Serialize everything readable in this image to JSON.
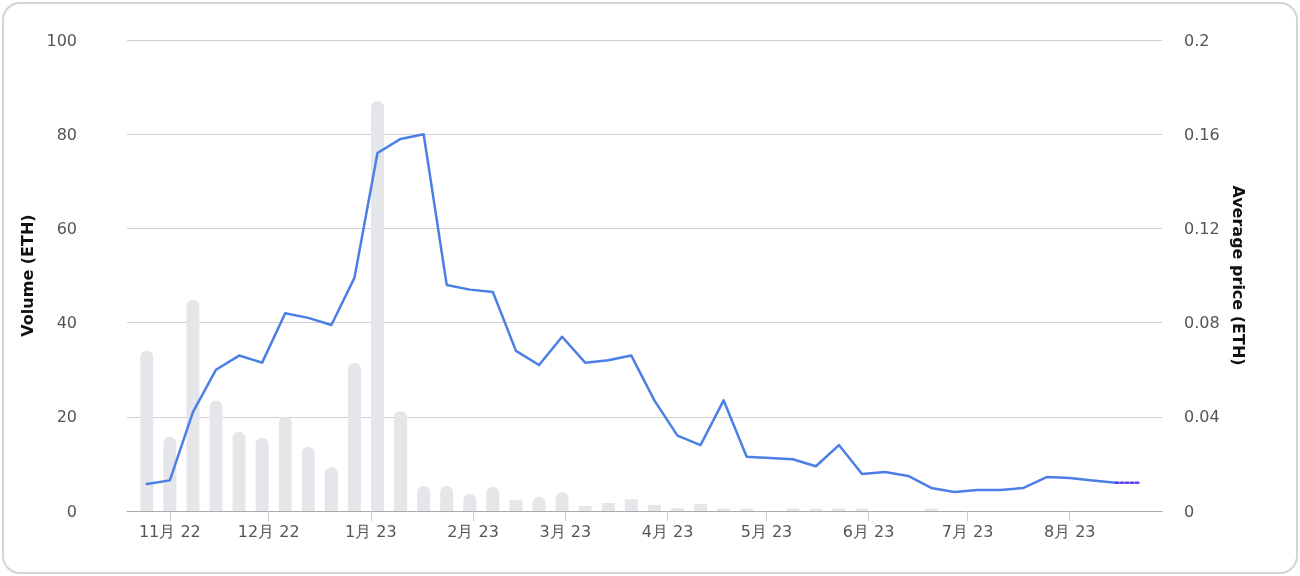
{
  "chart_data": {
    "type": "bar",
    "x": [
      "2022-10-25",
      "2022-11-01",
      "2022-11-08",
      "2022-11-15",
      "2022-11-22",
      "2022-11-29",
      "2022-12-06",
      "2022-12-13",
      "2022-12-20",
      "2022-12-27",
      "2023-01-03",
      "2023-01-10",
      "2023-01-17",
      "2023-01-24",
      "2023-01-31",
      "2023-02-07",
      "2023-02-14",
      "2023-02-21",
      "2023-02-28",
      "2023-03-07",
      "2023-03-14",
      "2023-03-21",
      "2023-03-28",
      "2023-04-04",
      "2023-04-11",
      "2023-04-18",
      "2023-04-25",
      "2023-05-02",
      "2023-05-09",
      "2023-05-16",
      "2023-05-23",
      "2023-05-30",
      "2023-06-06",
      "2023-06-13",
      "2023-06-20",
      "2023-06-27",
      "2023-07-04",
      "2023-07-11",
      "2023-07-18",
      "2023-07-25",
      "2023-08-01",
      "2023-08-08",
      "2023-08-15",
      "2023-08-22"
    ],
    "series": [
      {
        "color": "#e4e6e9",
        "values": [
          34,
          15.7,
          44.8,
          23.4,
          16.8,
          15.5,
          20,
          13.6,
          9.3,
          31.4,
          87,
          21.2,
          5.3,
          5.3,
          3.6,
          5.1,
          2.3,
          3,
          4,
          1.1,
          1.7,
          2.5,
          1.3,
          0.6,
          1.5,
          0.5,
          0.5,
          null,
          0.5,
          0.5,
          0.5,
          0.5,
          null,
          null,
          0.5,
          null,
          null,
          null,
          null,
          null,
          null,
          null,
          null,
          null
        ]
      },
      {
        "type": "line",
        "axis": "y2",
        "color": "#4c7fe6",
        "values": [
          0.0115,
          0.013,
          0.042,
          0.06,
          0.066,
          0.063,
          0.084,
          0.082,
          0.079,
          0.099,
          0.152,
          0.158,
          0.16,
          0.096,
          0.094,
          0.093,
          0.068,
          0.062,
          0.074,
          0.063,
          0.064,
          0.066,
          0.047,
          0.032,
          0.028,
          0.047,
          0.023,
          0.0225,
          0.022,
          0.019,
          0.028,
          0.0157,
          0.0166,
          0.0149,
          0.0098,
          0.0081,
          0.0089,
          0.0089,
          0.0098,
          0.0144,
          0.014,
          0.013,
          0.012,
          null
        ]
      },
      {
        "type": "line",
        "axis": "y2",
        "color": "#5b3ff0",
        "line_style": "dotted",
        "values": [
          null,
          null,
          null,
          null,
          null,
          null,
          null,
          null,
          null,
          null,
          null,
          null,
          null,
          null,
          null,
          null,
          null,
          null,
          null,
          null,
          null,
          null,
          null,
          null,
          null,
          null,
          null,
          null,
          null,
          null,
          null,
          null,
          null,
          null,
          null,
          null,
          null,
          null,
          null,
          null,
          null,
          null,
          0.012,
          0.012
        ]
      }
    ],
    "ylabel": "Volume (ETH)",
    "y2label": "Average price (ETH)",
    "ylim": [
      0,
      100
    ],
    "yticks": [
      0,
      20,
      40,
      60,
      80,
      100
    ],
    "y2lim": [
      0,
      0.2
    ],
    "y2ticks": [
      0,
      0.04,
      0.08,
      0.12,
      0.16,
      0.2
    ],
    "xlim": [
      "2022-10-19",
      "2023-08-29"
    ],
    "xticks": [
      {
        "value": "2022-11-01",
        "label": "11月 22"
      },
      {
        "value": "2022-12-01",
        "label": "12月 22"
      },
      {
        "value": "2023-01-01",
        "label": "1月 23"
      },
      {
        "value": "2023-02-01",
        "label": "2月 23"
      },
      {
        "value": "2023-03-01",
        "label": "3月 23"
      },
      {
        "value": "2023-04-01",
        "label": "4月 23"
      },
      {
        "value": "2023-05-01",
        "label": "5月 23"
      },
      {
        "value": "2023-06-01",
        "label": "6月 23"
      },
      {
        "value": "2023-07-01",
        "label": "7月 23"
      },
      {
        "value": "2023-08-01",
        "label": "8月 23"
      }
    ],
    "grid": "y",
    "marker": "none"
  }
}
